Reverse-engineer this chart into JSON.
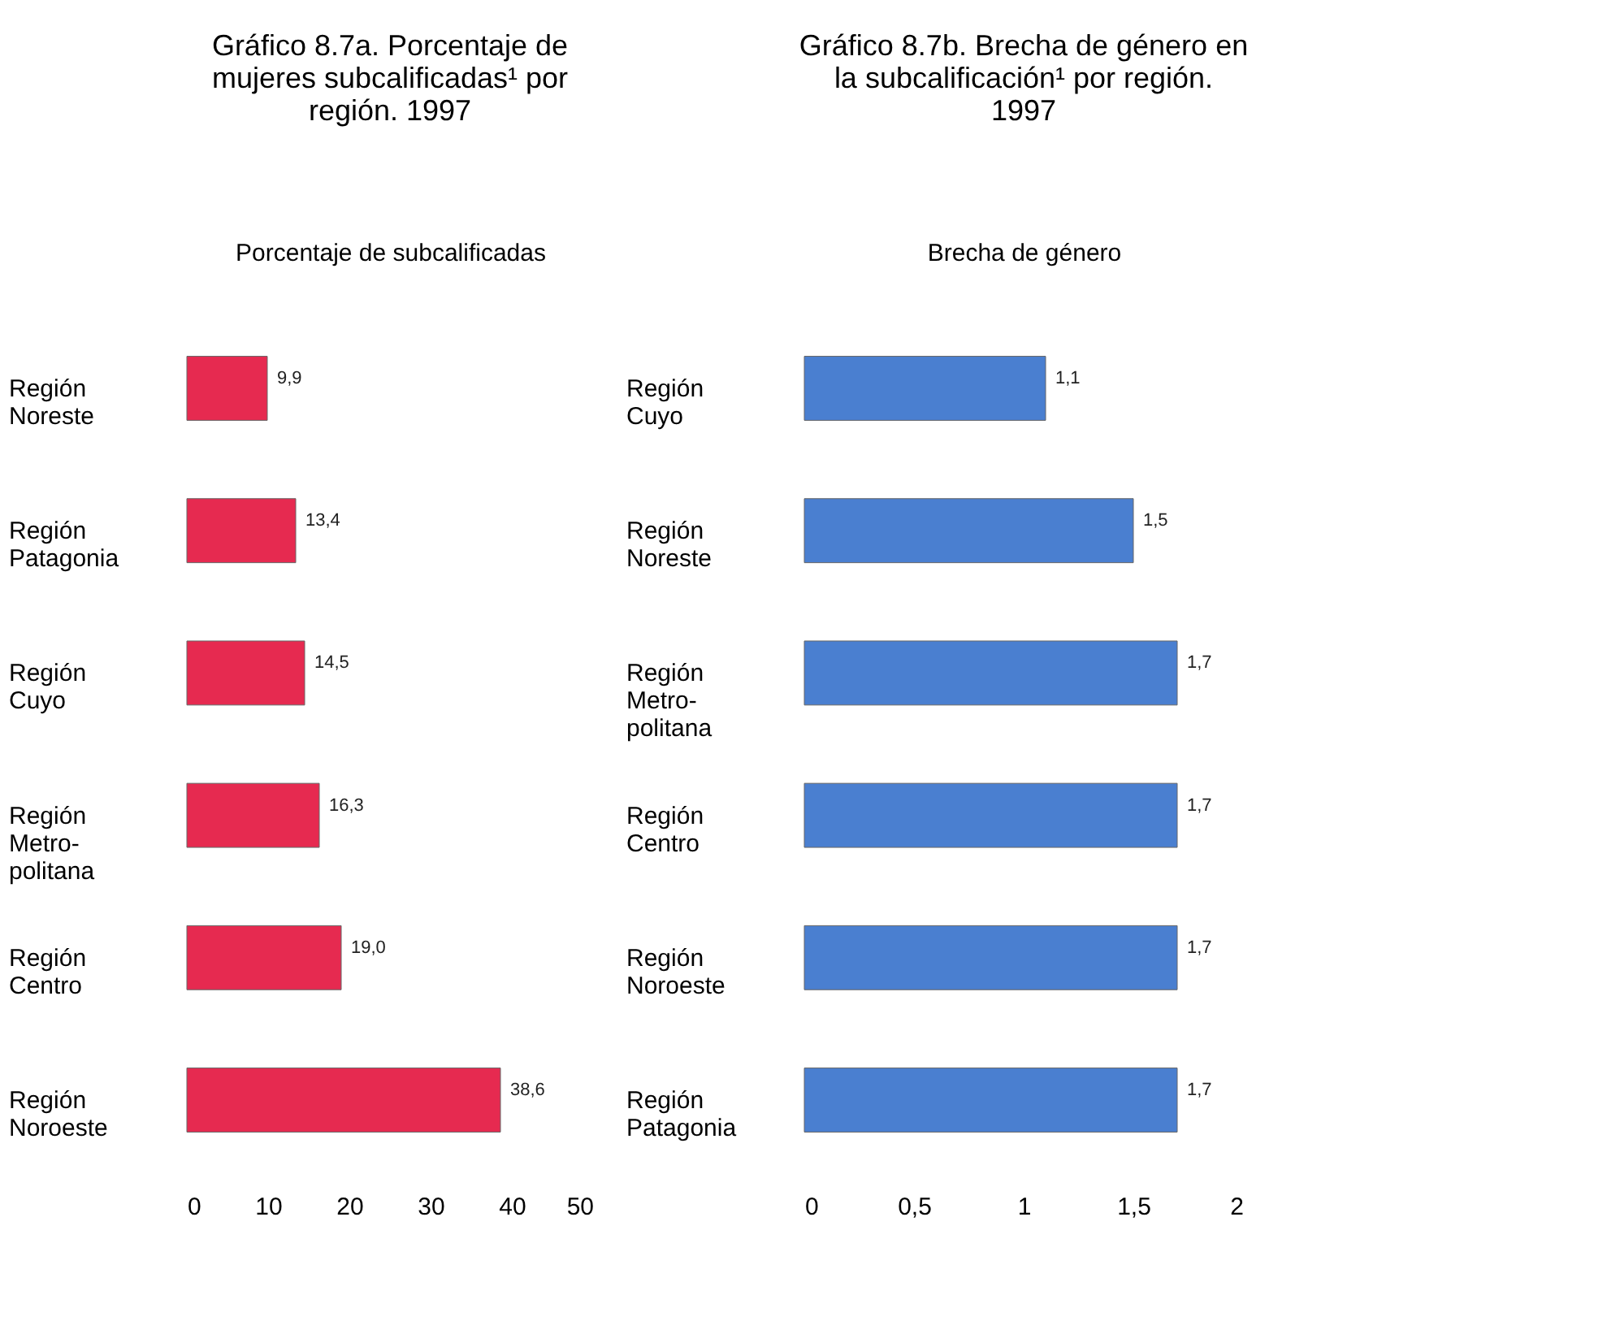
{
  "chart_data": [
    {
      "type": "bar",
      "orientation": "horizontal",
      "title": [
        "Gráfico 8.7a. Porcentaje de",
        "mujeres subcalificadas¹ por",
        "región. 1997"
      ],
      "xlabel": "Porcentaje de\nsubcalificadas",
      "categories": [
        "Región\nNoreste",
        "Región\nPatagonia",
        "Región\nCuyo",
        "Región\nMetro-\npolitana",
        "Región\nCentro",
        "Región\nNoroeste"
      ],
      "values": [
        9.9,
        13.4,
        14.5,
        16.3,
        19.0,
        38.6
      ],
      "value_labels": [
        "9,9",
        "13,4",
        "14,5",
        "16,3",
        "19,0",
        "38,6"
      ],
      "color": "#e62a50",
      "xlim": [
        0,
        50
      ],
      "xticks": [
        0,
        10,
        20,
        30,
        40,
        50
      ],
      "grid": false,
      "legend": false
    },
    {
      "type": "bar",
      "orientation": "horizontal",
      "title": [
        "Gráfico 8.7b. Brecha de género en",
        "la subcalificación¹ por región.",
        "1997"
      ],
      "xlabel": "Brecha de género",
      "categories": [
        "Región\nCuyo",
        "Región\nNoreste",
        "Región\nMetro-\npolitana",
        "Región\nCentro",
        "Región\nNoroeste",
        "Región\nPatagonia"
      ],
      "values": [
        1.1,
        1.5,
        1.7,
        1.7,
        1.7,
        1.7
      ],
      "value_labels": [
        "1,1",
        "1,5",
        "1,7",
        "1,7",
        "1,7",
        "1,7"
      ],
      "color": "#4a7fd0",
      "xlim": [
        0,
        2
      ],
      "xticks": [
        0,
        {
          "value": 0.5,
          "label": "0,5"
        },
        1,
        {
          "value": 1.5,
          "label": "1,5"
        },
        2
      ],
      "grid": false,
      "legend": false
    }
  ]
}
